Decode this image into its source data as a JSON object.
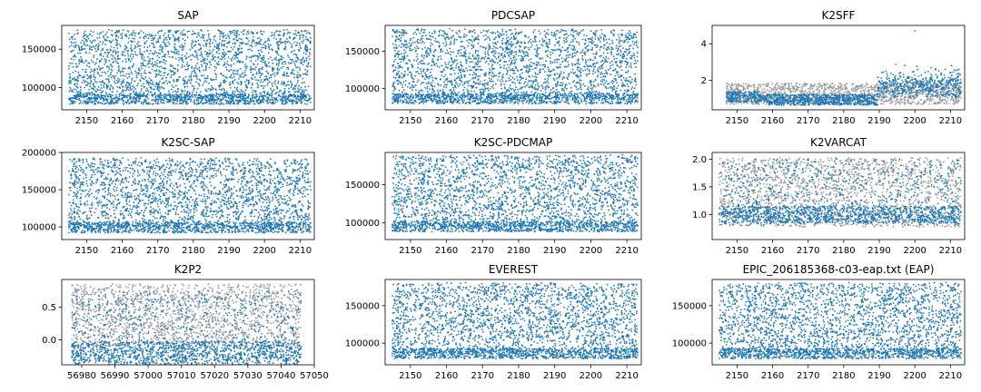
{
  "chart_data": [
    {
      "type": "scatter",
      "title": "SAP",
      "xlabel": "",
      "ylabel": "",
      "xlim": [
        2143,
        2214
      ],
      "ylim": [
        71000,
        181000
      ],
      "xticks": [
        2150,
        2160,
        2170,
        2180,
        2190,
        2200,
        2210
      ],
      "yticks": [
        100000,
        150000
      ],
      "ytick_labels": [
        "100000",
        "150000"
      ],
      "pattern": "sawtooth",
      "base": 85000,
      "top": 175000,
      "series": [
        {
          "color": "#1f77b4",
          "x": [
            2145,
            2150,
            2155,
            2160,
            2165,
            2170,
            2175,
            2180,
            2185,
            2190,
            2195,
            2200,
            2205,
            2210,
            2213
          ],
          "y": [
            85000,
            160000,
            120000,
            86000,
            150000,
            100000,
            84000,
            170000,
            110000,
            87000,
            140000,
            95000,
            85000,
            165000,
            86000
          ]
        }
      ]
    },
    {
      "type": "scatter",
      "title": "PDCSAP",
      "xlabel": "",
      "ylabel": "",
      "xlim": [
        2143,
        2214
      ],
      "ylim": [
        71000,
        185000
      ],
      "xticks": [
        2150,
        2160,
        2170,
        2180,
        2190,
        2200,
        2210
      ],
      "yticks": [
        100000,
        150000
      ],
      "ytick_labels": [
        "100000",
        "150000"
      ],
      "pattern": "sawtooth",
      "base": 86000,
      "top": 180000,
      "series": [
        {
          "color": "#1f77b4",
          "x": [
            2145,
            2150,
            2155,
            2160,
            2165,
            2170,
            2175,
            2180,
            2185,
            2190,
            2195,
            2200,
            2205,
            2210,
            2213
          ],
          "y": [
            86000,
            165000,
            125000,
            87000,
            155000,
            105000,
            85000,
            175000,
            115000,
            88000,
            145000,
            100000,
            86000,
            170000,
            87000
          ]
        }
      ]
    },
    {
      "type": "scatter",
      "title": "K2SFF",
      "xlabel": "",
      "ylabel": "",
      "xlim": [
        2143,
        2214
      ],
      "ylim": [
        0.4,
        5.0
      ],
      "xticks": [
        2150,
        2160,
        2170,
        2180,
        2190,
        2200,
        2210
      ],
      "yticks": [
        2,
        4
      ],
      "ytick_labels": [
        "2",
        "4"
      ],
      "pattern": "step",
      "series": [
        {
          "name": "",
          "color": "#999999",
          "x": [
            2147,
            2155,
            2165,
            2175,
            2185,
            2195,
            2205,
            2213
          ],
          "y": [
            1.0,
            1.8,
            0.9,
            1.7,
            1.2,
            1.5,
            1.0,
            1.8
          ]
        },
        {
          "name": "",
          "color": "#1f77b4",
          "x": [
            2147,
            2155,
            2165,
            2175,
            2185,
            2190,
            2195,
            2200,
            2205,
            2213
          ],
          "y": [
            1.1,
            1.2,
            0.9,
            1.0,
            0.9,
            1.6,
            1.8,
            4.7,
            1.5,
            1.4
          ]
        }
      ]
    },
    {
      "type": "scatter",
      "title": "K2SC-SAP",
      "xlabel": "",
      "ylabel": "",
      "xlim": [
        2143,
        2214
      ],
      "ylim": [
        83000,
        200000
      ],
      "xticks": [
        2150,
        2160,
        2170,
        2180,
        2190,
        2200,
        2210
      ],
      "yticks": [
        100000,
        150000,
        200000
      ],
      "ytick_labels": [
        "100000",
        "150000",
        "200000"
      ],
      "pattern": "sawtooth",
      "base": 99000,
      "top": 192000,
      "series": [
        {
          "color": "#1f77b4",
          "x": [
            2145,
            2150,
            2155,
            2160,
            2165,
            2170,
            2175,
            2180,
            2185,
            2190,
            2195,
            2200,
            2205,
            2210,
            2213
          ],
          "y": [
            99000,
            180000,
            140000,
            100000,
            170000,
            120000,
            98000,
            188000,
            130000,
            101000,
            160000,
            110000,
            99000,
            185000,
            100000
          ]
        }
      ]
    },
    {
      "type": "scatter",
      "title": "K2SC-PDCMAP",
      "xlabel": "",
      "ylabel": "",
      "xlim": [
        2143,
        2214
      ],
      "ylim": [
        78000,
        192000
      ],
      "xticks": [
        2150,
        2160,
        2170,
        2180,
        2190,
        2200,
        2210
      ],
      "yticks": [
        100000,
        150000
      ],
      "ytick_labels": [
        "100000",
        "150000"
      ],
      "pattern": "sawtooth",
      "base": 95000,
      "top": 188000,
      "series": [
        {
          "color": "#1f77b4",
          "x": [
            2145,
            2150,
            2155,
            2160,
            2165,
            2170,
            2175,
            2180,
            2185,
            2190,
            2195,
            2200,
            2205,
            2210,
            2213
          ],
          "y": [
            95000,
            175000,
            135000,
            96000,
            165000,
            115000,
            94000,
            185000,
            125000,
            97000,
            155000,
            105000,
            95000,
            180000,
            96000
          ]
        }
      ]
    },
    {
      "type": "scatter",
      "title": "K2VARCAT",
      "xlabel": "",
      "ylabel": "",
      "xlim": [
        2143,
        2214
      ],
      "ylim": [
        0.55,
        2.12
      ],
      "xticks": [
        2150,
        2160,
        2170,
        2180,
        2190,
        2200,
        2210
      ],
      "yticks": [
        1.0,
        1.5,
        2.0
      ],
      "ytick_labels": [
        "1.0",
        "1.5",
        "2.0"
      ],
      "pattern": "noisy",
      "series": [
        {
          "name": "",
          "color": "#999999",
          "x": [
            2145,
            2155,
            2165,
            2175,
            2185,
            2195,
            2205,
            2213
          ],
          "y": [
            0.8,
            0.9,
            0.85,
            0.8,
            0.9,
            0.85,
            0.8,
            0.9
          ]
        },
        {
          "name": "",
          "color": "#1f77b4",
          "x": [
            2145,
            2150,
            2155,
            2160,
            2165,
            2170,
            2175,
            2180,
            2185,
            2190,
            2195,
            2200,
            2205,
            2210,
            2213
          ],
          "y": [
            1.0,
            1.8,
            1.1,
            1.5,
            0.9,
            2.0,
            1.0,
            1.3,
            1.0,
            1.9,
            0.95,
            1.4,
            1.0,
            1.8,
            1.05
          ]
        }
      ]
    },
    {
      "type": "scatter",
      "title": "K2P2",
      "xlabel": "",
      "ylabel": "",
      "xlim": [
        56974,
        57050
      ],
      "ylim": [
        -0.38,
        0.92
      ],
      "xticks": [
        56980,
        56990,
        57000,
        57010,
        57020,
        57030,
        57040,
        57050
      ],
      "yticks": [
        0.0,
        0.5
      ],
      "ytick_labels": [
        "0.0",
        "0.5"
      ],
      "pattern": "noisy",
      "series": [
        {
          "name": "",
          "color": "#999999",
          "x": [
            56977,
            56985,
            56995,
            57005,
            57015,
            57025,
            57035,
            57046
          ],
          "y": [
            0.8,
            0.5,
            0.7,
            0.3,
            0.8,
            0.6,
            0.4,
            0.8
          ]
        },
        {
          "name": "",
          "color": "#1f77b4",
          "x": [
            56977,
            56982,
            56987,
            56992,
            56997,
            57002,
            57007,
            57012,
            57017,
            57022,
            57027,
            57032,
            57037,
            57042,
            57046
          ],
          "y": [
            -0.1,
            0.4,
            -0.2,
            0.6,
            -0.15,
            0.3,
            -0.25,
            0.5,
            -0.1,
            0.2,
            -0.2,
            0.4,
            -0.15,
            0.35,
            -0.1
          ]
        }
      ]
    },
    {
      "type": "scatter",
      "title": "EVEREST",
      "xlabel": "",
      "ylabel": "",
      "xlim": [
        2143,
        2214
      ],
      "ylim": [
        71000,
        185000
      ],
      "xticks": [
        2150,
        2160,
        2170,
        2180,
        2190,
        2200,
        2210
      ],
      "yticks": [
        100000,
        150000
      ],
      "ytick_labels": [
        "100000",
        "150000"
      ],
      "pattern": "sawtooth",
      "base": 86000,
      "top": 180000,
      "series": [
        {
          "color": "#1f77b4",
          "x": [
            2145,
            2150,
            2155,
            2160,
            2165,
            2170,
            2175,
            2180,
            2185,
            2190,
            2195,
            2200,
            2205,
            2210,
            2213
          ],
          "y": [
            86000,
            165000,
            125000,
            87000,
            155000,
            105000,
            85000,
            175000,
            115000,
            88000,
            145000,
            100000,
            86000,
            170000,
            87000
          ]
        }
      ]
    },
    {
      "type": "scatter",
      "title": "EPIC_206185368-c03-eap.txt (EAP)",
      "xlabel": "",
      "ylabel": "",
      "xlim": [
        2143,
        2214
      ],
      "ylim": [
        71000,
        185000
      ],
      "xticks": [
        2150,
        2160,
        2170,
        2180,
        2190,
        2200,
        2210
      ],
      "yticks": [
        100000,
        150000
      ],
      "ytick_labels": [
        "100000",
        "150000"
      ],
      "pattern": "sawtooth",
      "base": 86000,
      "top": 180000,
      "series": [
        {
          "color": "#1f77b4",
          "x": [
            2145,
            2150,
            2155,
            2160,
            2165,
            2170,
            2175,
            2180,
            2185,
            2190,
            2195,
            2200,
            2205,
            2210,
            2213
          ],
          "y": [
            86000,
            165000,
            125000,
            87000,
            155000,
            105000,
            85000,
            175000,
            115000,
            88000,
            145000,
            100000,
            86000,
            170000,
            87000
          ]
        }
      ]
    }
  ]
}
